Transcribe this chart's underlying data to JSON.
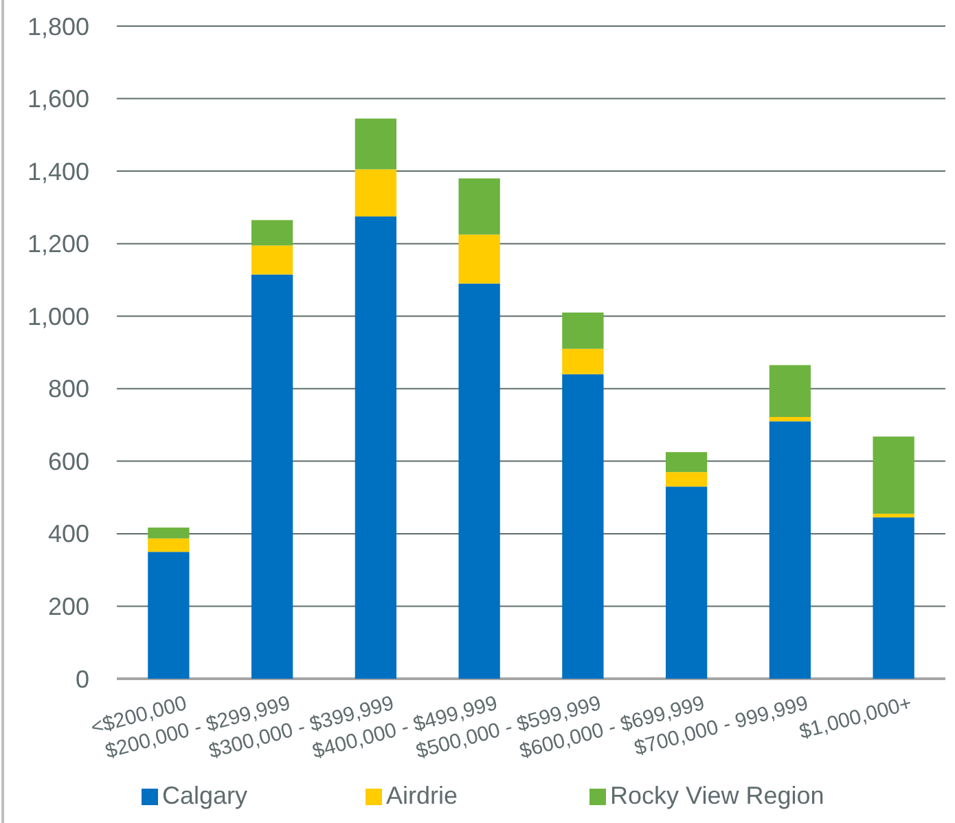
{
  "chart_data": {
    "type": "bar",
    "stacked": true,
    "categories": [
      "<$200,000",
      "$200,000 - $299,999",
      "$300,000 - $399,999",
      "$400,000 - $499,999",
      "$500,000 - $599,999",
      "$600,000 - $699,999",
      "$700,000 - 999,999",
      "$1,000,000+"
    ],
    "series": [
      {
        "name": "Calgary",
        "color": "#0070c0",
        "values": [
          350,
          1115,
          1275,
          1090,
          840,
          530,
          710,
          445
        ]
      },
      {
        "name": "Airdrie",
        "color": "#ffcc00",
        "values": [
          37,
          80,
          130,
          135,
          70,
          40,
          12,
          10
        ]
      },
      {
        "name": "Rocky View Region",
        "color": "#6db33f",
        "values": [
          30,
          70,
          140,
          155,
          100,
          55,
          143,
          213
        ]
      }
    ],
    "ylim": [
      0,
      1800
    ],
    "yticks": [
      {
        "value": 0,
        "label": "0"
      },
      {
        "value": 200,
        "label": "200"
      },
      {
        "value": 400,
        "label": "400"
      },
      {
        "value": 600,
        "label": "600"
      },
      {
        "value": 800,
        "label": "800"
      },
      {
        "value": 1000,
        "label": "1,000"
      },
      {
        "value": 1200,
        "label": "1,200"
      },
      {
        "value": 1400,
        "label": "1,400"
      },
      {
        "value": 1600,
        "label": "1,600"
      },
      {
        "value": 1800,
        "label": "1,800"
      }
    ],
    "grid": "y",
    "legend": "bottom"
  }
}
